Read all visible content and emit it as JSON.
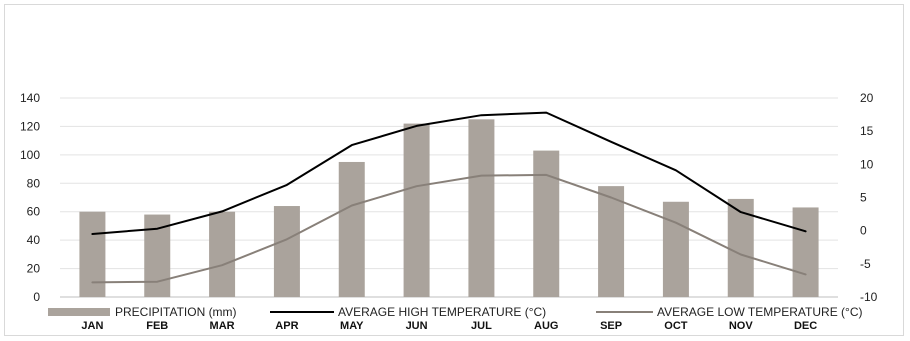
{
  "chart_data": {
    "type": "bar",
    "categories": [
      "JAN",
      "FEB",
      "MAR",
      "APR",
      "MAY",
      "JUN",
      "JUL",
      "AUG",
      "SEP",
      "OCT",
      "NOV",
      "DEC"
    ],
    "series": [
      {
        "name": "PRECIPITATION (mm)",
        "kind": "bar",
        "axis": "left",
        "color": "#aaa39c",
        "values": [
          60,
          58,
          60,
          64,
          95,
          122,
          125,
          103,
          78,
          67,
          69,
          63
        ]
      },
      {
        "name": "AVERAGE HIGH TEMPERATURE (°C)",
        "kind": "line",
        "axis": "right",
        "color": "#000000",
        "values": [
          -0.5,
          0.3,
          2.9,
          6.9,
          12.9,
          15.8,
          17.4,
          17.8,
          13.4,
          9.1,
          2.8,
          -0.1
        ]
      },
      {
        "name": "AVERAGE LOW TEMPERATURE (°C)",
        "kind": "line",
        "axis": "right",
        "color": "#888079",
        "values": [
          -7.8,
          -7.7,
          -5.2,
          -1.3,
          3.8,
          6.7,
          8.3,
          8.4,
          5.0,
          1.2,
          -3.6,
          -6.6
        ]
      }
    ],
    "y_left": {
      "min": 0,
      "max": 140,
      "ticks": [
        0,
        20,
        40,
        60,
        80,
        100,
        120,
        140
      ]
    },
    "y_right": {
      "min": -10,
      "max": 20,
      "ticks": [
        -10,
        -5,
        0,
        5,
        10,
        15,
        20
      ]
    },
    "grid": true,
    "legend_position": "bottom"
  }
}
